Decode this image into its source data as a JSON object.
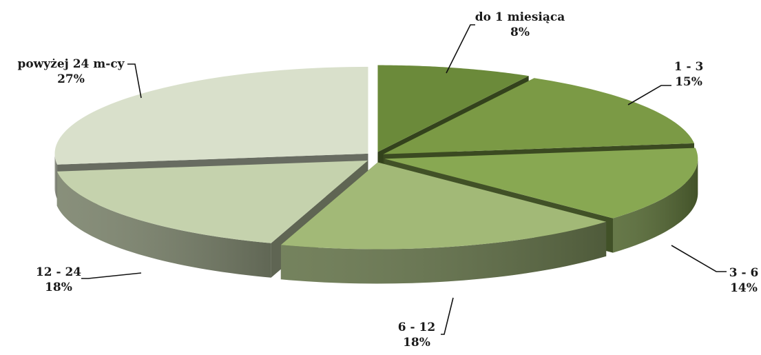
{
  "chart_data": {
    "type": "pie",
    "style": "3d-exploded",
    "title": "",
    "slices": [
      {
        "label": "do 1 miesiąca",
        "value": 8,
        "value_label": "8%",
        "color": "#6b8a3a"
      },
      {
        "label": "1 - 3",
        "value": 15,
        "value_label": "15%",
        "color": "#7b9a45"
      },
      {
        "label": "3 - 6",
        "value": 14,
        "value_label": "14%",
        "color": "#88a852"
      },
      {
        "label": "6 - 12",
        "value": 18,
        "value_label": "18%",
        "color": "#a2b977"
      },
      {
        "label": "12 - 24",
        "value": 18,
        "value_label": "18%",
        "color": "#c5d2ad"
      },
      {
        "label": "powyżej 24 m-cy",
        "value": 27,
        "value_label": "27%",
        "color": "#d9e0cb"
      }
    ],
    "legend": "none"
  }
}
